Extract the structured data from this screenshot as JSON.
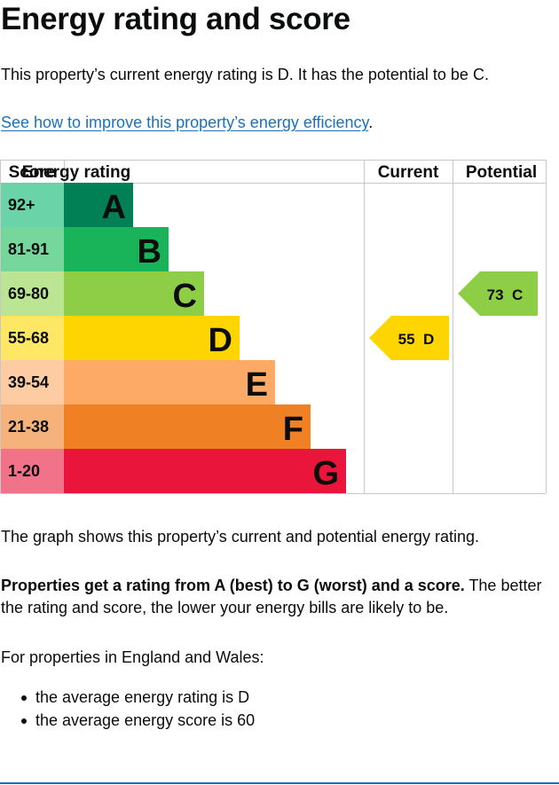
{
  "page": {
    "title": "Energy rating and score",
    "intro": "This property’s current energy rating is D. It has the potential to be C.",
    "improve_link": "See how to improve this property’s energy efficiency",
    "improve_link_suffix": ".",
    "graph_description": "The graph shows this property’s current and potential energy rating.",
    "rating_bold": "Properties get a rating from A (best) to G (worst) and a score.",
    "rating_rest": " The better the rating and score, the lower your energy bills are likely to be.",
    "england_wales_intro": "For properties in England and Wales:",
    "averages": [
      "the average energy rating is D",
      "the average energy score is 60"
    ]
  },
  "chart_data": {
    "type": "bar",
    "headers": {
      "score": "Score",
      "rating": "Energy rating",
      "current": "Current",
      "potential": "Potential"
    },
    "bands": [
      {
        "letter": "A",
        "range": "92+",
        "color": "#008054",
        "light": "#6ad3a7"
      },
      {
        "letter": "B",
        "range": "81-91",
        "color": "#19b459",
        "light": "#75d79b"
      },
      {
        "letter": "C",
        "range": "69-80",
        "color": "#8dce46",
        "light": "#bbe592"
      },
      {
        "letter": "D",
        "range": "55-68",
        "color": "#ffd500",
        "light": "#ffe766"
      },
      {
        "letter": "E",
        "range": "39-54",
        "color": "#fcaa65",
        "light": "#fdcca3"
      },
      {
        "letter": "F",
        "range": "21-38",
        "color": "#ef8023",
        "light": "#f5b37b"
      },
      {
        "letter": "G",
        "range": "1-20",
        "color": "#e9153b",
        "light": "#f27389"
      }
    ],
    "current": {
      "score": 55,
      "band": "D",
      "label": "55  D"
    },
    "potential": {
      "score": 73,
      "band": "C",
      "label": "73  C"
    }
  }
}
